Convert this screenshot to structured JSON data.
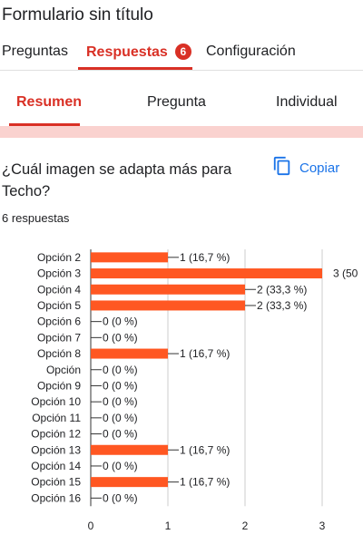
{
  "form": {
    "title": "Formulario sin título"
  },
  "tabs": [
    {
      "label": "Preguntas"
    },
    {
      "label": "Respuestas",
      "badge": "6"
    },
    {
      "label": "Configuración"
    }
  ],
  "subtabs": [
    {
      "label": "Resumen"
    },
    {
      "label": "Pregunta"
    },
    {
      "label": "Individual"
    }
  ],
  "question": {
    "text": "¿Cuál imagen se adapta más para Techo?",
    "copy_label": "Copiar",
    "responses_label": "6 respuestas"
  },
  "colors": {
    "accent": "#d93025",
    "bar": "#ff5722",
    "link": "#1a73e8",
    "band": "#fad2cf"
  },
  "icons": {
    "copy": "copy-icon"
  },
  "chart_data": {
    "type": "bar",
    "orientation": "horizontal",
    "title": "",
    "xlabel": "",
    "ylabel": "",
    "xlim": [
      0,
      3
    ],
    "x_ticks": [
      "0",
      "1",
      "2",
      "3"
    ],
    "grid": true,
    "categories": [
      "Opción 2",
      "Opción 3",
      "Opción 4",
      "Opción 5",
      "Opción 6",
      "Opción 7",
      "Opción 8",
      "Opción",
      "Opción 9",
      "Opción 10",
      "Opción 11",
      "Opción 12",
      "Opción 13",
      "Opción 14",
      "Opción 15",
      "Opción 16"
    ],
    "values": [
      1,
      3,
      2,
      2,
      0,
      0,
      1,
      0,
      0,
      0,
      0,
      0,
      1,
      0,
      1,
      0
    ],
    "data_labels": [
      "1 (16,7 %)",
      "3 (50",
      "2 (33,3 %)",
      "2 (33,3 %)",
      "0 (0 %)",
      "0 (0 %)",
      "1 (16,7 %)",
      "0 (0 %)",
      "0 (0 %)",
      "0 (0 %)",
      "0 (0 %)",
      "0 (0 %)",
      "1 (16,7 %)",
      "0 (0 %)",
      "1 (16,7 %)",
      "0 (0 %)"
    ]
  }
}
